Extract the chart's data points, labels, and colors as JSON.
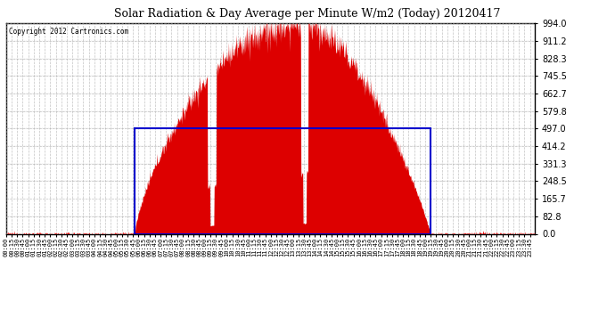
{
  "title": "Solar Radiation & Day Average per Minute W/m2 (Today) 20120417",
  "copyright": "Copyright 2012 Cartronics.com",
  "background_color": "#ffffff",
  "plot_bg_color": "#ffffff",
  "grid_color": "#aaaaaa",
  "bar_color": "#dd0000",
  "line_color": "#0000cc",
  "ylim": [
    0,
    994.0
  ],
  "yticks": [
    0.0,
    82.8,
    165.7,
    248.5,
    331.3,
    414.2,
    497.0,
    579.8,
    662.7,
    745.5,
    828.3,
    911.2,
    994.0
  ],
  "total_minutes": 1440,
  "sunrise_minute": 350,
  "sunset_minute": 1155,
  "day_avg": 497.0,
  "peak_value": 994.0,
  "seed": 12345
}
